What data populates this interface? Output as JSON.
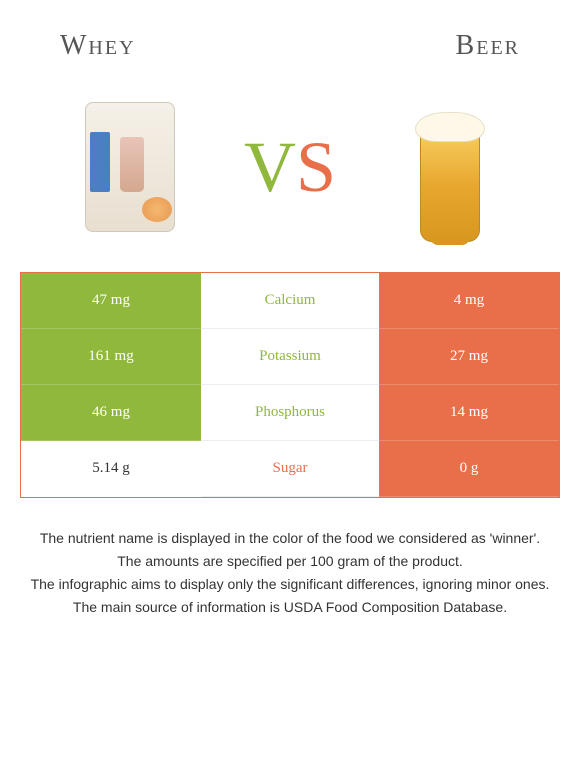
{
  "header": {
    "left_title": "Whey",
    "right_title": "Beer"
  },
  "vs": {
    "v": "V",
    "s": "S"
  },
  "colors": {
    "green": "#8fb83d",
    "orange": "#e86f4a",
    "white": "#ffffff",
    "text_gray": "#333333"
  },
  "comparison": {
    "type": "table",
    "rows": [
      {
        "left_value": "47 mg",
        "left_bg": "green",
        "nutrient": "Calcium",
        "nutrient_color": "green",
        "right_value": "4 mg",
        "right_bg": "orange"
      },
      {
        "left_value": "161 mg",
        "left_bg": "green",
        "nutrient": "Potassium",
        "nutrient_color": "green",
        "right_value": "27 mg",
        "right_bg": "orange"
      },
      {
        "left_value": "46 mg",
        "left_bg": "green",
        "nutrient": "Phosphorus",
        "nutrient_color": "green",
        "right_value": "14 mg",
        "right_bg": "orange"
      },
      {
        "left_value": "5.14 g",
        "left_bg": "white",
        "nutrient": "Sugar",
        "nutrient_color": "orange",
        "right_value": "0 g",
        "right_bg": "orange"
      }
    ]
  },
  "footer": {
    "line1": "The nutrient name is displayed in the color of the food we considered as 'winner'.",
    "line2": "The amounts are specified per 100 gram of the product.",
    "line3": "The infographic aims to display only the significant differences, ignoring minor ones.",
    "line4": "The main source of information is USDA Food Composition Database."
  }
}
